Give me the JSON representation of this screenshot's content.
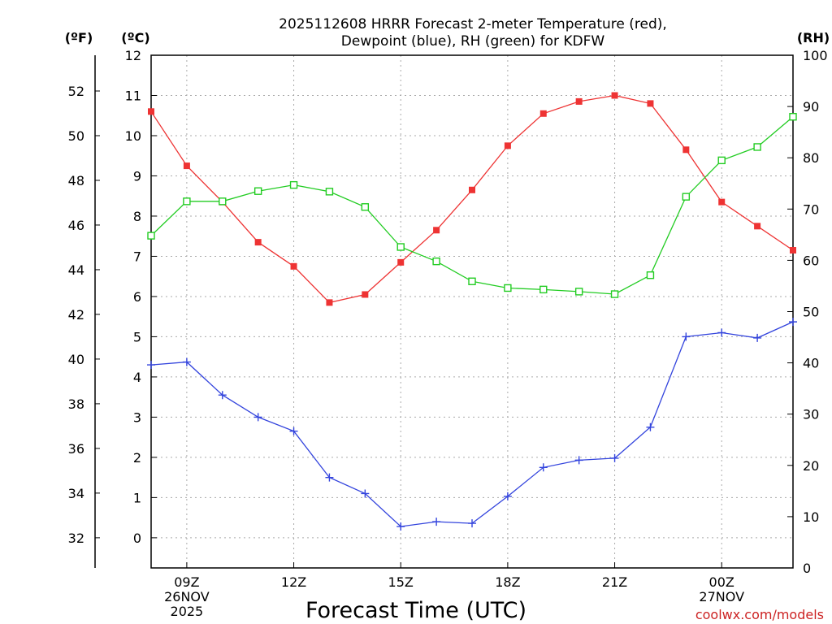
{
  "chart_data": {
    "type": "line",
    "title_line1": "2025112608 HRRR Forecast 2-meter Temperature (red),",
    "title_line2": "Dewpoint (blue), RH (green) for KDFW",
    "xlabel": "Forecast Time (UTC)",
    "credit": "coolwx.com/models",
    "units": {
      "fahrenheit": "(ºF)",
      "celsius": "(ºC)",
      "rh": "(RH)"
    },
    "x_range_hours": [
      8,
      26
    ],
    "celsius_axis": {
      "range": [
        -0.75,
        12
      ],
      "ticks": [
        0,
        1,
        2,
        3,
        4,
        5,
        6,
        7,
        8,
        9,
        10,
        11,
        12
      ]
    },
    "fahrenheit_axis": {
      "ticks": [
        32,
        34,
        36,
        38,
        40,
        42,
        44,
        46,
        48,
        50,
        52
      ]
    },
    "rh_axis": {
      "range": [
        0,
        100
      ],
      "ticks": [
        0,
        10,
        20,
        30,
        40,
        50,
        60,
        70,
        80,
        90,
        100
      ]
    },
    "x_ticks": [
      {
        "hour": 9,
        "lines": [
          "09Z",
          "26NOV",
          "2025"
        ]
      },
      {
        "hour": 12,
        "lines": [
          "12Z"
        ]
      },
      {
        "hour": 15,
        "lines": [
          "15Z"
        ]
      },
      {
        "hour": 18,
        "lines": [
          "18Z"
        ]
      },
      {
        "hour": 21,
        "lines": [
          "21Z"
        ]
      },
      {
        "hour": 24,
        "lines": [
          "00Z",
          "27NOV"
        ]
      }
    ],
    "hours": [
      8,
      9,
      10,
      11,
      12,
      13,
      14,
      15,
      16,
      17,
      18,
      19,
      20,
      21,
      22,
      23,
      24,
      25,
      26
    ],
    "series": [
      {
        "name": "Temperature",
        "axis": "celsius",
        "color": "#ee3333",
        "marker": "filled-square",
        "values": [
          10.6,
          9.25,
          8.35,
          7.35,
          6.75,
          5.85,
          6.05,
          6.85,
          7.65,
          8.65,
          9.75,
          10.55,
          10.85,
          11.0,
          10.8,
          9.65,
          8.35,
          7.75,
          7.15
        ]
      },
      {
        "name": "Dewpoint",
        "axis": "celsius",
        "color": "#3344dd",
        "marker": "plus",
        "values": [
          4.3,
          4.37,
          3.55,
          3.0,
          2.65,
          1.5,
          1.1,
          0.28,
          0.4,
          0.36,
          1.03,
          1.75,
          1.93,
          1.98,
          2.75,
          5.0,
          5.1,
          4.97,
          5.37
        ]
      },
      {
        "name": "RH",
        "axis": "rh",
        "color": "#22cc22",
        "marker": "open-square",
        "values": [
          64.8,
          71.5,
          71.5,
          73.5,
          74.7,
          73.4,
          70.4,
          62.6,
          59.8,
          55.9,
          54.6,
          54.3,
          53.9,
          53.4,
          57.1,
          72.4,
          79.5,
          82.1,
          88.0
        ]
      }
    ]
  }
}
